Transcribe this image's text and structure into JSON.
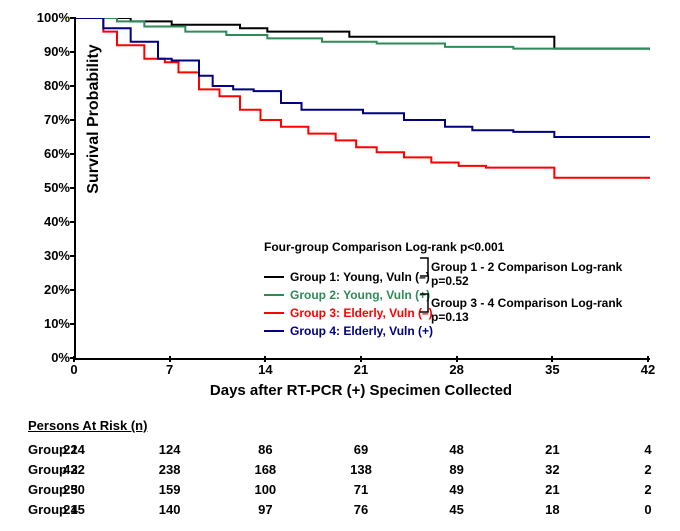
{
  "chart": {
    "type": "kaplan-meier",
    "ylabel": "Survival Probability",
    "xlabel": "Days after RT-PCR (+) Specimen Collected",
    "xlim": [
      0,
      42
    ],
    "ylim": [
      0,
      100
    ],
    "xtick_step": 7,
    "ytick_step": 10,
    "ytick_suffix": "%",
    "background_color": "#ffffff",
    "axis_color": "#000000",
    "line_width": 2,
    "tick_fontsize": 13,
    "label_fontsize": 15,
    "fourgroup_text": "Four-group Comparison Log-rank p<0.001",
    "comp12_text": "Group 1 - 2 Comparison Log-rank p=0.52",
    "comp34_text": "Group 3 - 4 Comparison Log-rank p=0.13",
    "series": [
      {
        "name": "Group 1: Young, Vuln (–)",
        "color": "#000000",
        "points": [
          [
            0,
            100
          ],
          [
            2,
            100
          ],
          [
            4,
            99
          ],
          [
            7,
            98
          ],
          [
            12,
            97
          ],
          [
            14,
            96
          ],
          [
            20,
            94.5
          ],
          [
            29,
            94.5
          ],
          [
            31,
            94.5
          ],
          [
            35,
            91
          ],
          [
            42,
            91
          ]
        ]
      },
      {
        "name": "Group 2: Young, Vuln (+)",
        "color": "#2e8b57",
        "points": [
          [
            0,
            100
          ],
          [
            3,
            99
          ],
          [
            5,
            97.5
          ],
          [
            8,
            96
          ],
          [
            11,
            95
          ],
          [
            14,
            94
          ],
          [
            18,
            93
          ],
          [
            22,
            92.5
          ],
          [
            27,
            91.5
          ],
          [
            32,
            91
          ],
          [
            36,
            91
          ],
          [
            42,
            90.5
          ]
        ]
      },
      {
        "name": "Group 3: Elderly, Vuln (–)",
        "color": "#ff0000",
        "points": [
          [
            0,
            100
          ],
          [
            2,
            96
          ],
          [
            3,
            92
          ],
          [
            5,
            88
          ],
          [
            6.5,
            87
          ],
          [
            7.5,
            84
          ],
          [
            9,
            79
          ],
          [
            10.5,
            77
          ],
          [
            12,
            73
          ],
          [
            13.5,
            70
          ],
          [
            15,
            68
          ],
          [
            17,
            66
          ],
          [
            19,
            64
          ],
          [
            20.5,
            62
          ],
          [
            22,
            60.5
          ],
          [
            24,
            59
          ],
          [
            26,
            57.5
          ],
          [
            28,
            56.5
          ],
          [
            30,
            56
          ],
          [
            35,
            53
          ],
          [
            42,
            53
          ]
        ]
      },
      {
        "name": "Group 4: Elderly, Vuln (+)",
        "color": "#000080",
        "points": [
          [
            0,
            100
          ],
          [
            2,
            97
          ],
          [
            4,
            93
          ],
          [
            6,
            88
          ],
          [
            7,
            87.5
          ],
          [
            9,
            83
          ],
          [
            10,
            80
          ],
          [
            11.5,
            79
          ],
          [
            13,
            78.5
          ],
          [
            15,
            75
          ],
          [
            16.5,
            73
          ],
          [
            19,
            73
          ],
          [
            21,
            72
          ],
          [
            24,
            70
          ],
          [
            27,
            68
          ],
          [
            29,
            67
          ],
          [
            32,
            66.5
          ],
          [
            35,
            65
          ],
          [
            42,
            65
          ]
        ]
      }
    ]
  },
  "risk_table": {
    "title": "Persons At Risk (n)",
    "x_positions": [
      0,
      7,
      14,
      21,
      28,
      35,
      42
    ],
    "rows": [
      {
        "label": "Group 1",
        "values": [
          224,
          124,
          86,
          69,
          48,
          21,
          4
        ]
      },
      {
        "label": "Group 2",
        "values": [
          432,
          238,
          168,
          138,
          89,
          32,
          2
        ]
      },
      {
        "label": "Group 3",
        "values": [
          250,
          159,
          100,
          71,
          49,
          21,
          2
        ]
      },
      {
        "label": "Group 4",
        "values": [
          215,
          140,
          97,
          76,
          45,
          18,
          0
        ]
      }
    ]
  }
}
